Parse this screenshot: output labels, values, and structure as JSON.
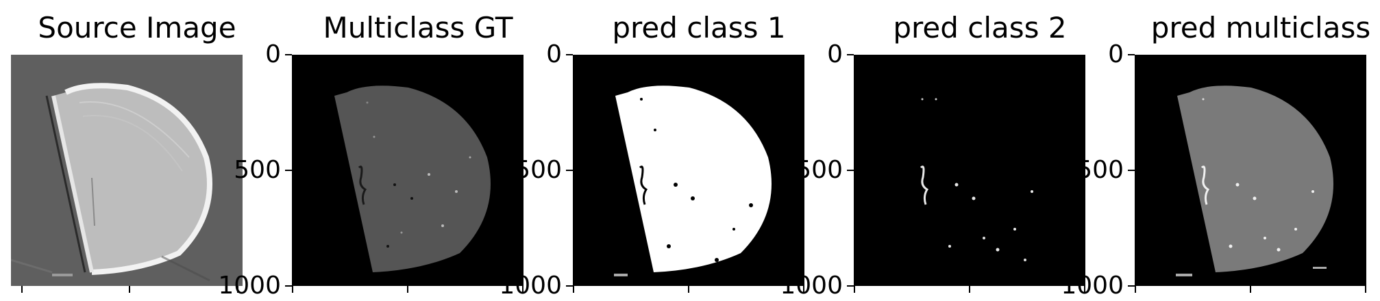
{
  "panels": [
    {
      "title": "Source Image",
      "image": "grayscale-source-image",
      "yticks": []
    },
    {
      "title": "Multiclass GT",
      "image": "ground-truth-mask",
      "yticks": [
        "0",
        "500",
        "1000"
      ]
    },
    {
      "title": "pred class 1",
      "image": "predicted-class-1-mask",
      "yticks": [
        "0",
        "500",
        "1000"
      ]
    },
    {
      "title": "pred class 2",
      "image": "predicted-class-2-mask",
      "yticks": [
        "0",
        "500",
        "1000"
      ]
    },
    {
      "title": "pred multiclass",
      "image": "predicted-multiclass-mask",
      "yticks": [
        "0",
        "500",
        "1000"
      ]
    }
  ],
  "colors": {
    "background": "#000000",
    "source_bg": "#5e5e5e",
    "source_segment": "#cfcfcf",
    "gt_segment": "#555555",
    "class1_segment": "#ffffff",
    "class2_marks": "#e8e8e8",
    "multiclass_segment": "#7a7a7a"
  }
}
